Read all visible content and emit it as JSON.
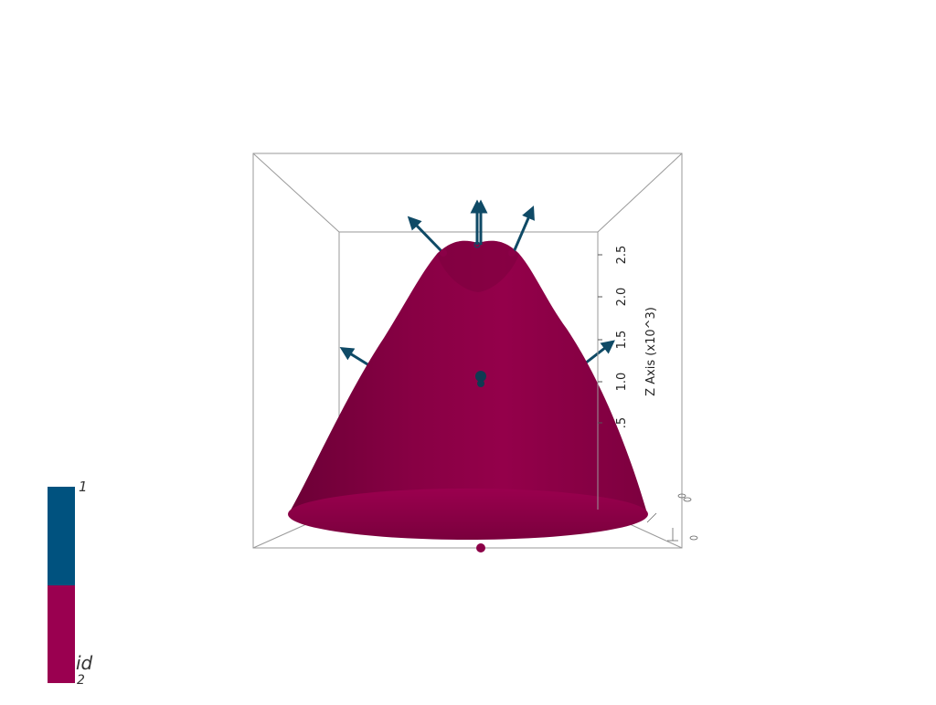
{
  "scene": {
    "z_axis": {
      "title": "Z Axis (x10^3)",
      "ticks": [
        "2.5",
        "2.0",
        "1.5",
        "1.0",
        ".5"
      ]
    },
    "mesh_color": "#8b0047",
    "glyph_color": "#0f4a66",
    "background_color": "#ffffff"
  },
  "scalar_bar": {
    "title": "id",
    "max_label": "1",
    "min_label": "2",
    "top_color": "#00527f",
    "bottom_color": "#9a0050"
  }
}
